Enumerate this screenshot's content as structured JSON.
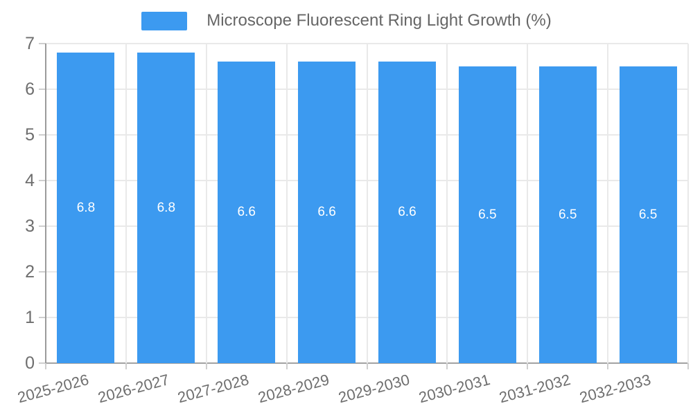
{
  "chart_data": {
    "type": "bar",
    "title": "Microscope Fluorescent Ring Light Growth (%)",
    "categories": [
      "2025-2026",
      "2026-2027",
      "2027-2028",
      "2028-2029",
      "2029-2030",
      "2030-2031",
      "2031-2032",
      "2032-2033"
    ],
    "values": [
      6.8,
      6.8,
      6.6,
      6.6,
      6.6,
      6.5,
      6.5,
      6.5
    ],
    "value_labels": [
      "6.8",
      "6.8",
      "6.6",
      "6.6",
      "6.6",
      "6.5",
      "6.5",
      "6.5"
    ],
    "xlabel": "",
    "ylabel": "",
    "ylim": [
      0,
      7
    ],
    "yticks": [
      0,
      1,
      2,
      3,
      4,
      5,
      6,
      7
    ],
    "grid": true,
    "legend_position": "top-center",
    "colors": {
      "bar": "#3C9AF0",
      "bar_label": "#ffffff",
      "gridline": "#e9e9e9",
      "axis_line": "#a2a2a2",
      "tick_mark": "#cfcfcf",
      "tick_text": "#6e6e6e",
      "title_text": "#666666",
      "background": "#ffffff"
    }
  }
}
